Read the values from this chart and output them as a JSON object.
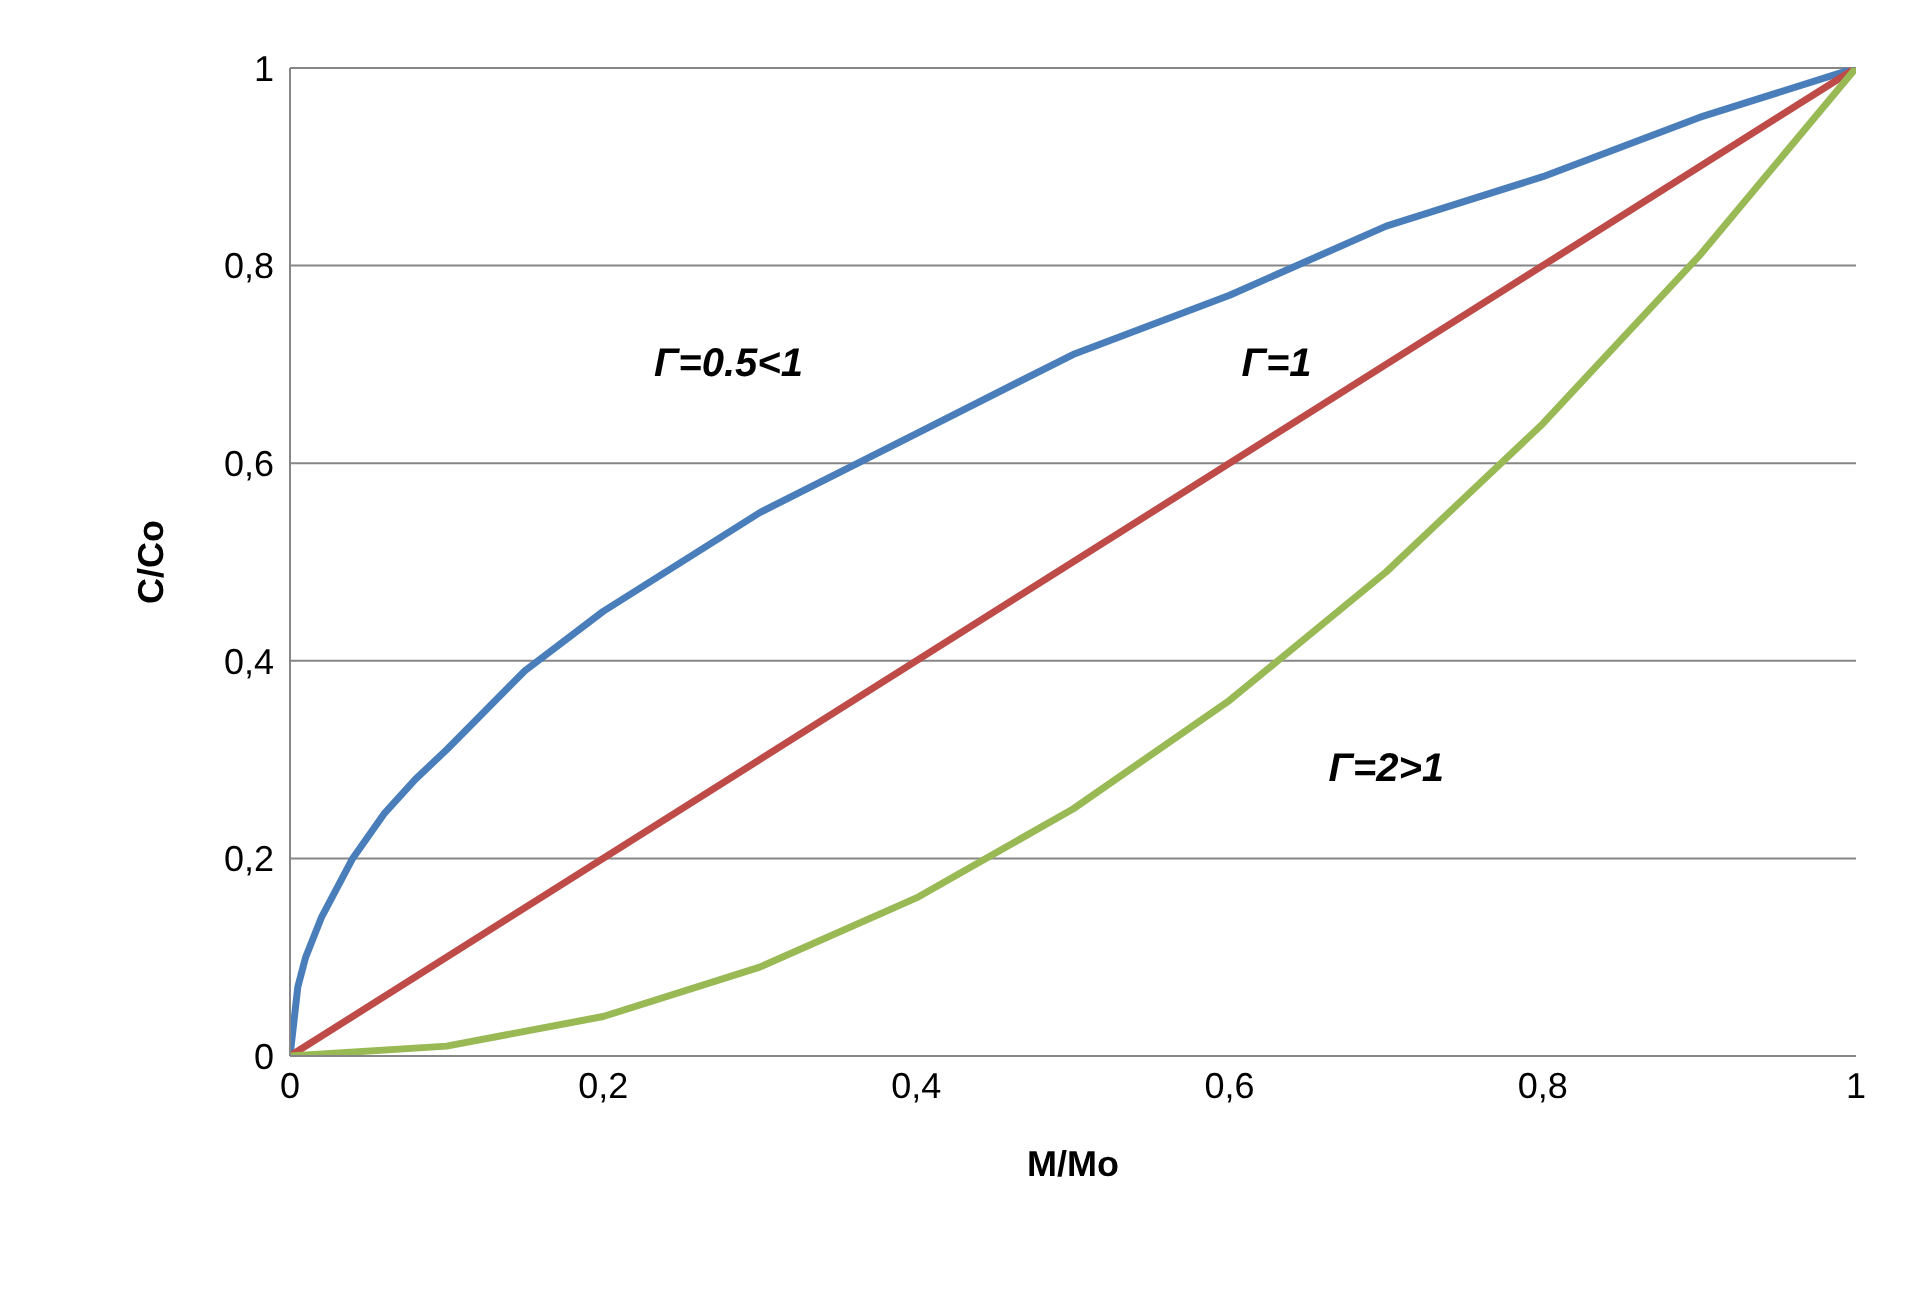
{
  "chart_data": {
    "type": "line",
    "xlabel": "M/Mo",
    "ylabel": "C/Co",
    "xlim": [
      0,
      1
    ],
    "ylim": [
      0,
      1
    ],
    "xticks": [
      0,
      {
        "value": 0.2,
        "label": "0,2"
      },
      {
        "value": 0.4,
        "label": "0,4"
      },
      {
        "value": 0.6,
        "label": "0,6"
      },
      {
        "value": 0.8,
        "label": "0,8"
      },
      1
    ],
    "yticks": [
      0,
      {
        "value": 0.2,
        "label": "0,2"
      },
      {
        "value": 0.4,
        "label": "0,4"
      },
      {
        "value": 0.6,
        "label": "0,6"
      },
      {
        "value": 0.8,
        "label": "0,8"
      },
      1
    ],
    "grid": "y",
    "marker": "none",
    "line_style": "solid",
    "series": [
      {
        "color": "#4a7ebb",
        "x": [
          0,
          0.005,
          0.01,
          0.02,
          0.04,
          0.06,
          0.08,
          0.1,
          0.15,
          0.2,
          0.3,
          0.4,
          0.5,
          0.6,
          0.7,
          0.8,
          0.9,
          1
        ],
        "values": [
          0,
          0.07,
          0.1,
          0.14,
          0.2,
          0.245,
          0.28,
          0.31,
          0.39,
          0.45,
          0.55,
          0.63,
          0.71,
          0.77,
          0.84,
          0.89,
          0.95,
          1
        ]
      },
      {
        "color": "#be4b48",
        "x": [
          0,
          1
        ],
        "values": [
          0,
          1
        ]
      },
      {
        "color": "#98b954",
        "x": [
          0,
          0.1,
          0.2,
          0.3,
          0.4,
          0.5,
          0.6,
          0.7,
          0.8,
          0.9,
          1
        ],
        "values": [
          0,
          0.01,
          0.04,
          0.09,
          0.16,
          0.25,
          0.36,
          0.49,
          0.64,
          0.81,
          1
        ]
      }
    ],
    "annotations": [
      "Γ=0.5<1",
      "Γ=1",
      "Γ=2>1"
    ]
  }
}
